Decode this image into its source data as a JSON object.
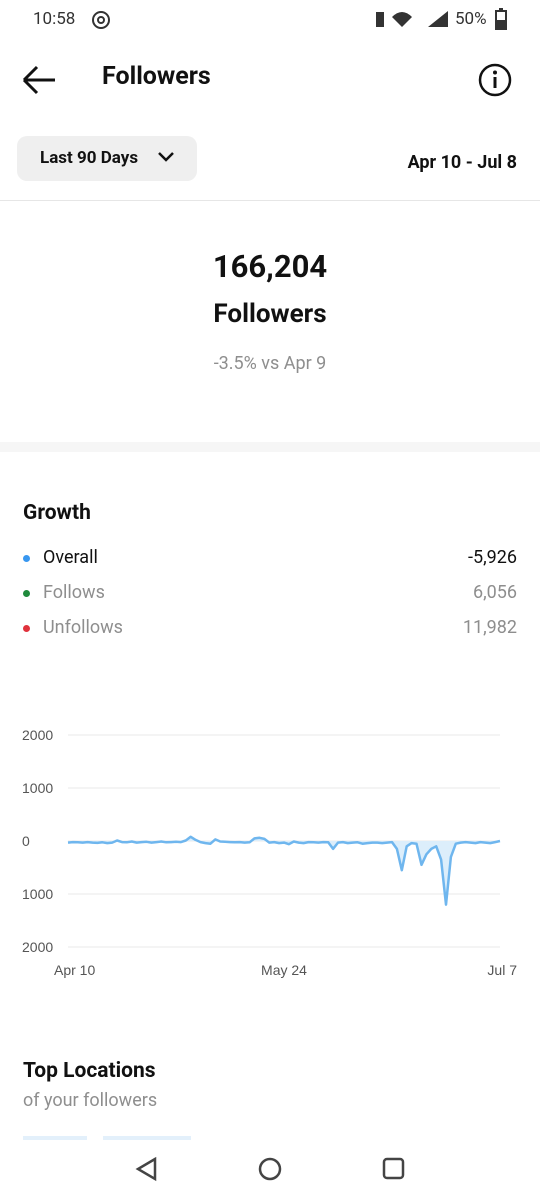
{
  "status_bar": {
    "time": "10:58",
    "battery": "50%"
  },
  "header": {
    "title": "Followers"
  },
  "filter": {
    "period": "Last 90 Days",
    "date_range": "Apr 10 - Jul 8"
  },
  "summary": {
    "count": "166,204",
    "label": "Followers",
    "change": "-3.5% vs Apr 9"
  },
  "growth": {
    "title": "Growth",
    "items": [
      {
        "name": "Overall",
        "value": "-5,926",
        "color": "#3897f0"
      },
      {
        "name": "Follows",
        "value": "6,056",
        "color": "#1f8a3c"
      },
      {
        "name": "Unfollows",
        "value": "11,982",
        "color": "#e0323c"
      }
    ]
  },
  "chart_data": {
    "type": "line",
    "color": "#6fb6ee",
    "fill": "#dceefb",
    "x": [
      0,
      1,
      2,
      3,
      4,
      5,
      6,
      7,
      8,
      9,
      10,
      11,
      12,
      13,
      14,
      15,
      16,
      17,
      18,
      19,
      20,
      21,
      22,
      23,
      24,
      25,
      26,
      27,
      28,
      29,
      30,
      31,
      32,
      33,
      34,
      35,
      36,
      37,
      38,
      39,
      40,
      41,
      42,
      43,
      44,
      45,
      46,
      47,
      48,
      49,
      50,
      51,
      52,
      53,
      54,
      55,
      56,
      57,
      58,
      59,
      60,
      61,
      62,
      63,
      64,
      65,
      66,
      67,
      68,
      69,
      70,
      71,
      72,
      73,
      74,
      75,
      76,
      77,
      78,
      79,
      80,
      81,
      82,
      83,
      84,
      85,
      86,
      87,
      88
    ],
    "values": [
      -30,
      -20,
      -25,
      -30,
      -20,
      -30,
      -35,
      -25,
      -40,
      -30,
      10,
      -20,
      -25,
      -10,
      -30,
      -20,
      -15,
      -30,
      -20,
      -10,
      -25,
      -20,
      -15,
      -20,
      10,
      80,
      20,
      -20,
      -40,
      -50,
      30,
      -10,
      -15,
      -20,
      -25,
      -20,
      -30,
      -25,
      50,
      60,
      40,
      -30,
      -20,
      -40,
      -30,
      -60,
      -10,
      -30,
      -40,
      -20,
      -25,
      -30,
      -20,
      -25,
      -150,
      -30,
      -20,
      -40,
      -30,
      -25,
      -50,
      -40,
      -30,
      -30,
      -40,
      -30,
      -20,
      -150,
      -550,
      -100,
      -40,
      -50,
      -450,
      -250,
      -150,
      -100,
      -350,
      -1200,
      -300,
      -50,
      -30,
      -20,
      -30,
      -40,
      -20,
      -30,
      -40,
      -20,
      0
    ],
    "xlim": [
      0,
      88
    ],
    "xticks": [
      {
        "value": 0,
        "label": "Apr 10"
      },
      {
        "value": 44,
        "label": "May 24"
      },
      {
        "value": 88,
        "label": "Jul 7"
      }
    ],
    "ylim": [
      -2000,
      2000
    ],
    "yticks": [
      2000,
      1000,
      0,
      {
        "value": -1000,
        "label": "1000"
      },
      {
        "value": -2000,
        "label": "2000"
      }
    ],
    "grid": true
  },
  "locations": {
    "title": "Top Locations",
    "subtitle": "of your followers"
  }
}
